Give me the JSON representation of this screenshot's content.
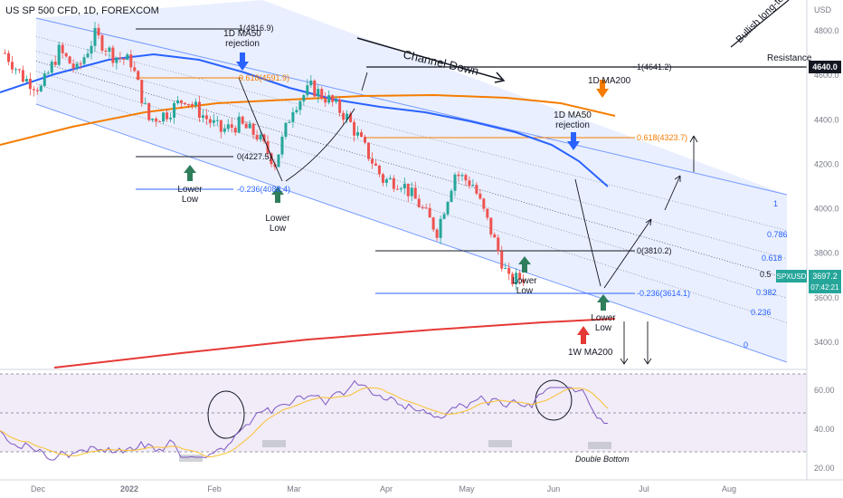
{
  "header": {
    "symbol_line": "US SP 500 CFD, 1D, FOREXCOM"
  },
  "price_scale": {
    "unit": "USD",
    "ticks": [
      "4800.0",
      "4600.0",
      "4400.0",
      "4200.0",
      "4000.0",
      "3800.0",
      "3600.0",
      "3400.0"
    ],
    "resistance_label": "4640.0",
    "current_ticker": "SPXUSD",
    "current_price": "3697.2",
    "countdown": "07:42:21"
  },
  "rsi_scale": {
    "ticks": [
      "60.00",
      "40.00",
      "20.00"
    ]
  },
  "time_axis": {
    "labels": [
      "Dec",
      "2022",
      "Feb",
      "Mar",
      "Apr",
      "May",
      "Jun",
      "Jul",
      "Aug"
    ]
  },
  "annotations": {
    "channel_down": "Channel Down",
    "bullish": "Bullish long-te",
    "resistance": "Resistance",
    "ma50_rej_1": "1D MA50\nrejection",
    "ma50_rej_2": "1D MA50\nrejection",
    "ma200_1d": "1D MA200",
    "ma200_1w": "1W MA200",
    "lower_low_1": "Lower\nLow",
    "lower_low_2": "Lower\nLow",
    "lower_low_3": "Lower\nLow",
    "lower_low_4": "Lower\nLow",
    "double_bottom": "Double Bottom"
  },
  "fib_top": {
    "level_1": "1(4816.9)",
    "level_0618": "0.618(4591.9)",
    "level_0": "0(4227.5)",
    "level_m0236": "-0.236(4088.4)"
  },
  "fib_bottom": {
    "level_1": "1(4641.2)",
    "level_0618": "0.618(4323.7)",
    "level_0": "0(3810.2)",
    "level_m0236": "-0.236(3614.1)"
  },
  "channel_fib": [
    "1",
    "0.786",
    "0.618",
    "0.5",
    "0.382",
    "0.236",
    "0"
  ],
  "colors": {
    "up": "#26a69a",
    "down": "#ef5350",
    "ma50": "#2962ff",
    "ma200d": "#f57c00",
    "ma200w": "#e53935",
    "channel": "#2962ff",
    "rsi": "#7e57c2",
    "rsi_ma": "#fbc02d",
    "green_arrow": "#2e7d5b",
    "blue_arrow": "#2962ff",
    "orange_arrow": "#f57c00"
  },
  "chart_data": {
    "type": "candlestick",
    "title": "US SP 500 CFD, 1D, FOREXCOM",
    "ylim": [
      3300,
      4900
    ],
    "weekly_closes": [
      {
        "x": "Nov-w3",
        "y": 4700
      },
      {
        "x": "Nov-w4",
        "y": 4590
      },
      {
        "x": "Dec-w1",
        "y": 4540
      },
      {
        "x": "Dec-w2",
        "y": 4710
      },
      {
        "x": "Dec-w3",
        "y": 4620
      },
      {
        "x": "Dec-w4",
        "y": 4780
      },
      {
        "x": "Jan-w1",
        "y": 4690
      },
      {
        "x": "Jan-w2",
        "y": 4660
      },
      {
        "x": "Jan-w3",
        "y": 4400
      },
      {
        "x": "Jan-w4",
        "y": 4430
      },
      {
        "x": "Feb-w1",
        "y": 4500
      },
      {
        "x": "Feb-w2",
        "y": 4420
      },
      {
        "x": "Feb-w3",
        "y": 4350
      },
      {
        "x": "Feb-w4",
        "y": 4380
      },
      {
        "x": "Mar-w1",
        "y": 4330
      },
      {
        "x": "Mar-w2",
        "y": 4205
      },
      {
        "x": "Mar-w3",
        "y": 4460
      },
      {
        "x": "Mar-w4",
        "y": 4545
      },
      {
        "x": "Apr-w1",
        "y": 4490
      },
      {
        "x": "Apr-w2",
        "y": 4410
      },
      {
        "x": "Apr-w3",
        "y": 4270
      },
      {
        "x": "Apr-w4",
        "y": 4130
      },
      {
        "x": "May-w1",
        "y": 4120
      },
      {
        "x": "May-w2",
        "y": 4020
      },
      {
        "x": "May-w3",
        "y": 3900
      },
      {
        "x": "May-w4",
        "y": 4160
      },
      {
        "x": "Jun-w1",
        "y": 4110
      },
      {
        "x": "Jun-w2",
        "y": 3900
      },
      {
        "x": "Jun-w3",
        "y": 3675
      },
      {
        "x": "Jun-w4",
        "y": 3697
      }
    ],
    "levels": {
      "resistance": 4640,
      "last": 3697.2
    }
  }
}
